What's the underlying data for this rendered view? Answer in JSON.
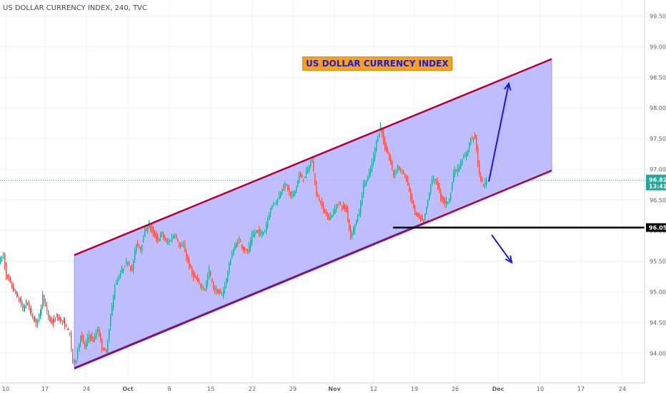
{
  "header": {
    "title": "US DOLLAR CURRENCY INDEX, 240, TVC"
  },
  "annotation": {
    "label": "US DOLLAR CURRENCY INDEX"
  },
  "colors": {
    "up_candle": "#26a69a",
    "down_candle": "#ef5350",
    "channel_fill": "#b3b3ff",
    "channel_line": "#b2003b",
    "support_line": "#000000",
    "arrow": "#1a1adb",
    "last_price_badge": "#26a69a",
    "support_badge": "#000000",
    "last_price_line": "#5aa6a6"
  },
  "chart_data": {
    "type": "candlestick",
    "title": "US DOLLAR CURRENCY INDEX, 240, TVC",
    "ylim": [
      93.7,
      99.6
    ],
    "y_ticks": [
      94.0,
      94.5,
      95.0,
      95.5,
      96.0,
      96.5,
      97.0,
      97.5,
      98.0,
      98.5,
      99.0,
      99.5
    ],
    "y_tick_labels": [
      "94.00",
      "94.50",
      "95.00",
      "95.50",
      "96.00",
      "96.50",
      "97.00",
      "97.50",
      "98.00",
      "98.50",
      "99.00",
      "99.50"
    ],
    "x_tick_labels": [
      "10",
      "17",
      "24",
      "Oct",
      "8",
      "15",
      "22",
      "29",
      "Nov",
      "12",
      "19",
      "26",
      "Dec",
      "10",
      "17",
      "24"
    ],
    "x_tick_bold": [
      "Oct",
      "Nov",
      "Dec"
    ],
    "last_price": 96.82,
    "last_price_label": "96.82",
    "countdown_label": "13:41",
    "support_level": 96.05,
    "support_label": "96.05",
    "path_points": [
      [
        0,
        95.5
      ],
      [
        6,
        95.6
      ],
      [
        10,
        95.25
      ],
      [
        14,
        95.2
      ],
      [
        19,
        95.05
      ],
      [
        24,
        94.95
      ],
      [
        29,
        94.85
      ],
      [
        34,
        94.7
      ],
      [
        38,
        94.85
      ],
      [
        43,
        94.7
      ],
      [
        48,
        94.55
      ],
      [
        52,
        94.5
      ],
      [
        57,
        94.65
      ],
      [
        61,
        94.95
      ],
      [
        65,
        94.75
      ],
      [
        70,
        94.55
      ],
      [
        75,
        94.5
      ],
      [
        80,
        94.6
      ],
      [
        85,
        94.55
      ],
      [
        90,
        94.5
      ],
      [
        95,
        94.4
      ],
      [
        99,
        94.3
      ],
      [
        103,
        93.85
      ],
      [
        108,
        93.9
      ],
      [
        114,
        94.3
      ],
      [
        120,
        94.1
      ],
      [
        126,
        94.3
      ],
      [
        132,
        94.2
      ],
      [
        138,
        94.4
      ],
      [
        144,
        94.1
      ],
      [
        150,
        94.0
      ],
      [
        156,
        94.6
      ],
      [
        162,
        95.1
      ],
      [
        168,
        95.25
      ],
      [
        174,
        95.4
      ],
      [
        180,
        95.5
      ],
      [
        186,
        95.35
      ],
      [
        192,
        95.8
      ],
      [
        198,
        95.7
      ],
      [
        204,
        96.0
      ],
      [
        210,
        96.1
      ],
      [
        216,
        95.95
      ],
      [
        222,
        95.85
      ],
      [
        228,
        95.95
      ],
      [
        234,
        95.8
      ],
      [
        240,
        95.85
      ],
      [
        246,
        95.95
      ],
      [
        252,
        95.75
      ],
      [
        258,
        95.75
      ],
      [
        264,
        95.5
      ],
      [
        270,
        95.3
      ],
      [
        276,
        95.2
      ],
      [
        282,
        95.1
      ],
      [
        288,
        95.05
      ],
      [
        294,
        95.35
      ],
      [
        300,
        95.05
      ],
      [
        306,
        95.0
      ],
      [
        312,
        94.95
      ],
      [
        318,
        95.2
      ],
      [
        324,
        95.55
      ],
      [
        330,
        95.75
      ],
      [
        336,
        95.85
      ],
      [
        342,
        95.7
      ],
      [
        348,
        95.65
      ],
      [
        354,
        95.9
      ],
      [
        360,
        96.0
      ],
      [
        366,
        95.95
      ],
      [
        372,
        96.0
      ],
      [
        378,
        96.3
      ],
      [
        384,
        96.45
      ],
      [
        390,
        96.5
      ],
      [
        396,
        96.7
      ],
      [
        402,
        96.75
      ],
      [
        408,
        96.55
      ],
      [
        414,
        96.65
      ],
      [
        420,
        96.9
      ],
      [
        426,
        96.85
      ],
      [
        432,
        97.0
      ],
      [
        438,
        97.15
      ],
      [
        444,
        96.6
      ],
      [
        450,
        96.45
      ],
      [
        456,
        96.3
      ],
      [
        462,
        96.2
      ],
      [
        468,
        96.3
      ],
      [
        474,
        96.45
      ],
      [
        480,
        96.4
      ],
      [
        486,
        96.35
      ],
      [
        492,
        95.9
      ],
      [
        498,
        96.1
      ],
      [
        504,
        96.3
      ],
      [
        510,
        96.75
      ],
      [
        516,
        96.85
      ],
      [
        522,
        97.1
      ],
      [
        528,
        97.45
      ],
      [
        534,
        97.7
      ],
      [
        540,
        97.35
      ],
      [
        546,
        97.2
      ],
      [
        552,
        96.9
      ],
      [
        558,
        97.05
      ],
      [
        564,
        96.95
      ],
      [
        570,
        96.85
      ],
      [
        576,
        96.55
      ],
      [
        582,
        96.3
      ],
      [
        588,
        96.2
      ],
      [
        594,
        96.15
      ],
      [
        600,
        96.5
      ],
      [
        606,
        96.85
      ],
      [
        612,
        96.8
      ],
      [
        618,
        96.55
      ],
      [
        624,
        96.45
      ],
      [
        630,
        96.5
      ],
      [
        636,
        96.95
      ],
      [
        642,
        97.0
      ],
      [
        648,
        97.15
      ],
      [
        654,
        97.25
      ],
      [
        660,
        97.5
      ],
      [
        666,
        97.55
      ],
      [
        672,
        96.9
      ],
      [
        678,
        96.72
      ],
      [
        682,
        96.82
      ]
    ],
    "channel": {
      "upper": [
        [
          104,
          95.6
        ],
        [
          772,
          98.8
        ]
      ],
      "lower": [
        [
          104,
          93.75
        ],
        [
          772,
          96.98
        ]
      ],
      "close_right_x": 772
    },
    "support_segment": [
      550,
      932
    ],
    "arrows": [
      {
        "direction": "up",
        "from": [
          684,
          96.8
        ],
        "to": [
          712,
          98.4
        ]
      },
      {
        "direction": "down",
        "from": [
          688,
          95.93
        ],
        "to": [
          716,
          95.48
        ]
      }
    ]
  }
}
